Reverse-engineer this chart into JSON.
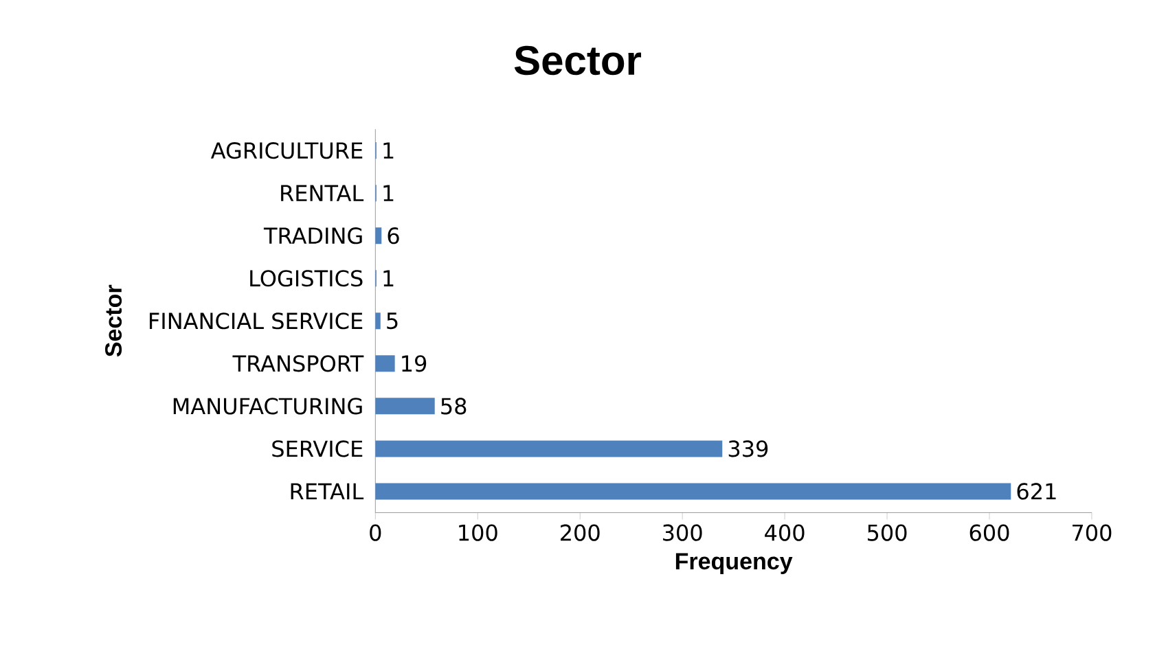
{
  "chart_data": {
    "type": "bar",
    "orientation": "horizontal",
    "title": "Sector",
    "xlabel": "Frequency",
    "ylabel": "Sector",
    "categories": [
      "AGRICULTURE",
      "RENTAL",
      "TRADING",
      "LOGISTICS",
      "FINANCIAL SERVICE",
      "TRANSPORT",
      "MANUFACTURING",
      "SERVICE",
      "RETAIL"
    ],
    "values": [
      1,
      1,
      6,
      1,
      5,
      19,
      58,
      339,
      621
    ],
    "color": "#4f81bd",
    "xlim": [
      0,
      700
    ],
    "xticks": [
      0,
      100,
      200,
      300,
      400,
      500,
      600,
      700
    ],
    "data_labels": true
  }
}
